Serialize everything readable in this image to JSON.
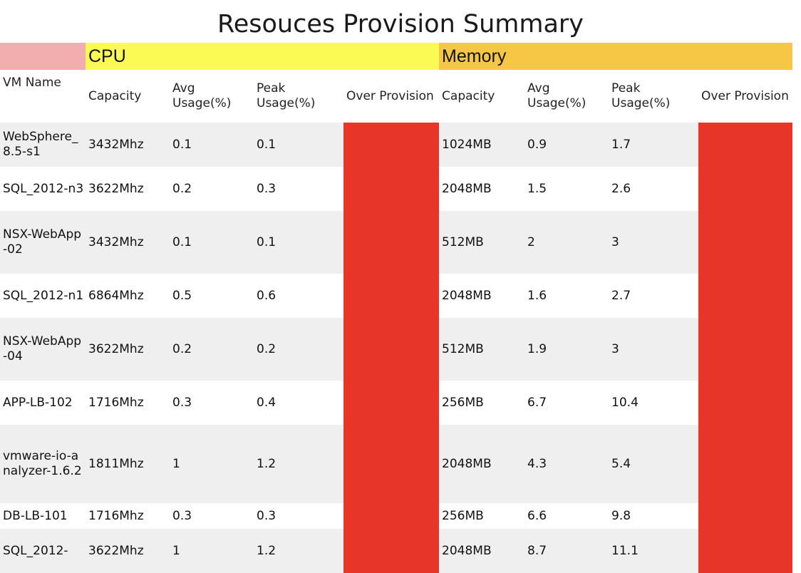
{
  "title": "Resouces Provision Summary",
  "groups": {
    "cpu": "CPU",
    "memory": "Memory"
  },
  "columns": {
    "vm_name": "VM Name",
    "cpu_capacity": "Capacity",
    "cpu_avg": "Avg Usage(%)",
    "cpu_peak": "Peak Usage(%)",
    "cpu_over": "Over Provision",
    "mem_capacity": "Capacity",
    "mem_avg": "Avg Usage(%)",
    "mem_peak": "Peak Usage(%)",
    "mem_over": "Over Provision"
  },
  "colors": {
    "group_blank": "#f2aeae",
    "group_cpu": "#fbfa55",
    "group_memory": "#f6c645",
    "over_provision": "#e8352a",
    "row_shade": "#efefef"
  },
  "rows": [
    {
      "vm": "WebSphere_8.5-s1",
      "cpu_cap": "3432Mhz",
      "cpu_avg": "0.1",
      "cpu_peak": "0.1",
      "mem_cap": "1024MB",
      "mem_avg": "0.9",
      "mem_peak": "1.7"
    },
    {
      "vm": "SQL_2012-n3",
      "cpu_cap": "3622Mhz",
      "cpu_avg": "0.2",
      "cpu_peak": "0.3",
      "mem_cap": "2048MB",
      "mem_avg": "1.5",
      "mem_peak": "2.6"
    },
    {
      "vm": "NSX-WebApp-02",
      "cpu_cap": "3432Mhz",
      "cpu_avg": "0.1",
      "cpu_peak": "0.1",
      "mem_cap": "512MB",
      "mem_avg": "2",
      "mem_peak": "3"
    },
    {
      "vm": "SQL_2012-n1",
      "cpu_cap": "6864Mhz",
      "cpu_avg": "0.5",
      "cpu_peak": "0.6",
      "mem_cap": "2048MB",
      "mem_avg": "1.6",
      "mem_peak": "2.7"
    },
    {
      "vm": "NSX-WebApp-04",
      "cpu_cap": "3622Mhz",
      "cpu_avg": "0.2",
      "cpu_peak": "0.2",
      "mem_cap": "512MB",
      "mem_avg": "1.9",
      "mem_peak": "3"
    },
    {
      "vm": "APP-LB-102",
      "cpu_cap": "1716Mhz",
      "cpu_avg": "0.3",
      "cpu_peak": "0.4",
      "mem_cap": "256MB",
      "mem_avg": "6.7",
      "mem_peak": "10.4"
    },
    {
      "vm": "vmware-io-analyzer-1.6.2",
      "cpu_cap": "1811Mhz",
      "cpu_avg": "1",
      "cpu_peak": "1.2",
      "mem_cap": "2048MB",
      "mem_avg": "4.3",
      "mem_peak": "5.4"
    },
    {
      "vm": "DB-LB-101",
      "cpu_cap": "1716Mhz",
      "cpu_avg": "0.3",
      "cpu_peak": "0.3",
      "mem_cap": "256MB",
      "mem_avg": "6.6",
      "mem_peak": "9.8"
    },
    {
      "vm": "SQL_2012-",
      "cpu_cap": "3622Mhz",
      "cpu_avg": "1",
      "cpu_peak": "1.2",
      "mem_cap": "2048MB",
      "mem_avg": "8.7",
      "mem_peak": "11.1"
    }
  ]
}
